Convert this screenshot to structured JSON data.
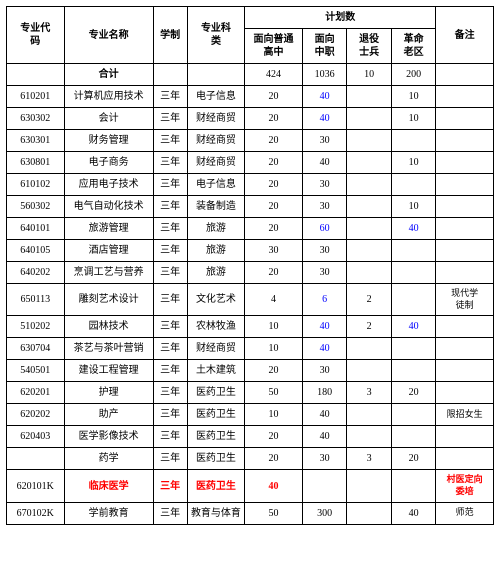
{
  "headers": {
    "code": "专业代\n码",
    "name": "专业名称",
    "duration": "学制",
    "category": "专业科\n类",
    "plan_group": "计划数",
    "plan_hs": "面向普通\n高中",
    "plan_voc": "面向\n中职",
    "plan_vet": "退役\n士兵",
    "plan_old": "革命\n老区",
    "note": "备注",
    "total_label": "合计"
  },
  "totals": {
    "hs": "424",
    "voc": "1036",
    "vet": "10",
    "old": "200"
  },
  "rows": [
    {
      "code": "610201",
      "name": "计算机应用技术",
      "dur": "三年",
      "cat": "电子信息",
      "hs": "20",
      "voc": "40",
      "vet": "",
      "old": "10",
      "note": "",
      "voc_blue": true
    },
    {
      "code": "630302",
      "name": "会计",
      "dur": "三年",
      "cat": "财经商贸",
      "hs": "20",
      "voc": "40",
      "vet": "",
      "old": "10",
      "note": "",
      "voc_blue": true
    },
    {
      "code": "630301",
      "name": "财务管理",
      "dur": "三年",
      "cat": "财经商贸",
      "hs": "20",
      "voc": "30",
      "vet": "",
      "old": "",
      "note": ""
    },
    {
      "code": "630801",
      "name": "电子商务",
      "dur": "三年",
      "cat": "财经商贸",
      "hs": "20",
      "voc": "40",
      "vet": "",
      "old": "10",
      "note": ""
    },
    {
      "code": "610102",
      "name": "应用电子技术",
      "dur": "三年",
      "cat": "电子信息",
      "hs": "20",
      "voc": "30",
      "vet": "",
      "old": "",
      "note": ""
    },
    {
      "code": "560302",
      "name": "电气自动化技术",
      "dur": "三年",
      "cat": "装备制造",
      "hs": "20",
      "voc": "30",
      "vet": "",
      "old": "10",
      "note": ""
    },
    {
      "code": "640101",
      "name": "旅游管理",
      "dur": "三年",
      "cat": "旅游",
      "hs": "20",
      "voc": "60",
      "vet": "",
      "old": "40",
      "note": "",
      "voc_blue": true,
      "old_blue": true
    },
    {
      "code": "640105",
      "name": "酒店管理",
      "dur": "三年",
      "cat": "旅游",
      "hs": "30",
      "voc": "30",
      "vet": "",
      "old": "",
      "note": ""
    },
    {
      "code": "640202",
      "name": "烹调工艺与营养",
      "dur": "三年",
      "cat": "旅游",
      "hs": "20",
      "voc": "30",
      "vet": "",
      "old": "",
      "note": ""
    },
    {
      "code": "650113",
      "name": "雕刻艺术设计",
      "dur": "三年",
      "cat": "文化艺术",
      "hs": "4",
      "voc": "6",
      "vet": "2",
      "old": "",
      "note": "现代学\n徒制",
      "voc_blue": true
    },
    {
      "code": "510202",
      "name": "园林技术",
      "dur": "三年",
      "cat": "农林牧渔",
      "hs": "10",
      "voc": "40",
      "vet": "2",
      "old": "40",
      "note": "",
      "voc_blue": true,
      "old_blue": true
    },
    {
      "code": "630704",
      "name": "茶艺与茶叶营销",
      "dur": "三年",
      "cat": "财经商贸",
      "hs": "10",
      "voc": "40",
      "vet": "",
      "old": "",
      "note": "",
      "voc_blue": true
    },
    {
      "code": "540501",
      "name": "建设工程管理",
      "dur": "三年",
      "cat": "土木建筑",
      "hs": "20",
      "voc": "30",
      "vet": "",
      "old": "",
      "note": ""
    },
    {
      "code": "620201",
      "name": "护理",
      "dur": "三年",
      "cat": "医药卫生",
      "hs": "50",
      "voc": "180",
      "vet": "3",
      "old": "20",
      "note": ""
    },
    {
      "code": "620202",
      "name": "助产",
      "dur": "三年",
      "cat": "医药卫生",
      "hs": "10",
      "voc": "40",
      "vet": "",
      "old": "",
      "note": "限招女生"
    },
    {
      "code": "620403",
      "name": "医学影像技术",
      "dur": "三年",
      "cat": "医药卫生",
      "hs": "20",
      "voc": "40",
      "vet": "",
      "old": "",
      "note": ""
    },
    {
      "code": "",
      "name": "药学",
      "dur": "三年",
      "cat": "医药卫生",
      "hs": "20",
      "voc": "30",
      "vet": "3",
      "old": "20",
      "note": ""
    },
    {
      "code": "620101K",
      "name": "临床医学",
      "dur": "三年",
      "cat": "医药卫生",
      "hs": "40",
      "voc": "",
      "vet": "",
      "old": "",
      "note": "村医定向\n委培",
      "red": true
    },
    {
      "code": "670102K",
      "name": "学前教育",
      "dur": "三年",
      "cat": "教育与体育",
      "hs": "50",
      "voc": "300",
      "vet": "",
      "old": "40",
      "note": "师范"
    }
  ],
  "colors": {
    "red": "#ff0000",
    "blue": "#0000ff",
    "border": "#000000",
    "bg": "#ffffff"
  }
}
